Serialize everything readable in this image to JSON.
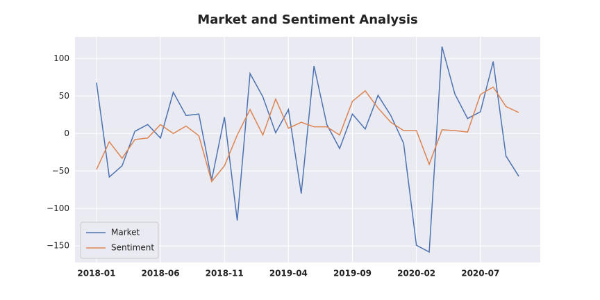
{
  "chart_data": {
    "type": "line",
    "title": "Market and Sentiment Analysis",
    "x": [
      "2018-01",
      "2018-02",
      "2018-03",
      "2018-04",
      "2018-05",
      "2018-06",
      "2018-07",
      "2018-08",
      "2018-09",
      "2018-10",
      "2018-11",
      "2018-12",
      "2019-01",
      "2019-02",
      "2019-03",
      "2019-04",
      "2019-05",
      "2019-06",
      "2019-07",
      "2019-08",
      "2019-09",
      "2019-10",
      "2019-11",
      "2019-12",
      "2020-01",
      "2020-02",
      "2020-03",
      "2020-04",
      "2020-05",
      "2020-06",
      "2020-07",
      "2020-08",
      "2020-09",
      "2020-10"
    ],
    "series": [
      {
        "name": "Market",
        "color": "#4c72b0",
        "values": [
          68,
          -58,
          -43,
          3,
          12,
          -6,
          55,
          24,
          26,
          -62,
          22,
          -116,
          80,
          49,
          1,
          32,
          -80,
          90,
          12,
          -20,
          26,
          6,
          51,
          24,
          -13,
          -149,
          -158,
          116,
          53,
          20,
          29,
          96,
          -30,
          -57
        ]
      },
      {
        "name": "Sentiment",
        "color": "#dd8452",
        "values": [
          -48,
          -11,
          -33,
          -8,
          -6,
          12,
          0,
          10,
          -3,
          -64,
          -43,
          -2,
          32,
          -2,
          46,
          7,
          15,
          9,
          9,
          -2,
          43,
          57,
          34,
          15,
          4,
          4,
          -41,
          5,
          4,
          2,
          52,
          62,
          36,
          28
        ]
      }
    ],
    "xticks": [
      "2018-01",
      "2018-06",
      "2018-11",
      "2019-04",
      "2019-09",
      "2020-02",
      "2020-07"
    ],
    "ylim": [
      -172,
      129
    ],
    "yticks": [
      {
        "value": -150,
        "label": "−150"
      },
      {
        "value": -100,
        "label": "−100"
      },
      {
        "value": -50,
        "label": "−50"
      },
      0,
      50,
      100
    ],
    "grid": true,
    "legend": "lower left"
  }
}
